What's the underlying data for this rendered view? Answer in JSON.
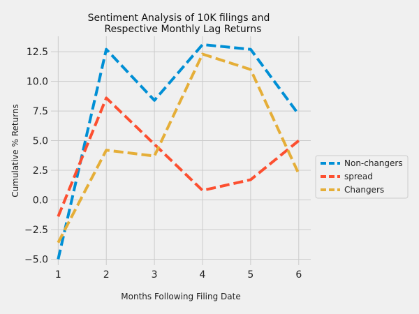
{
  "chart_data": {
    "type": "line",
    "title_lines": [
      "Sentiment Analysis of 10K filings and",
      "Respective Monthly Lag Returns"
    ],
    "xlabel": "Months Following Filing Date",
    "ylabel": "Cumulative % Returns",
    "x": [
      1,
      2,
      3,
      4,
      5,
      6
    ],
    "xticks": [
      "1",
      "2",
      "3",
      "4",
      "5",
      "6"
    ],
    "xlim": [
      0.85,
      6.25
    ],
    "ylim": [
      -5.5,
      13.8
    ],
    "yticks": [
      -5.0,
      -2.5,
      0.0,
      2.5,
      5.0,
      7.5,
      10.0,
      12.5
    ],
    "ytick_labels": [
      "−5.0",
      "−2.5",
      "0.0",
      "2.5",
      "5.0",
      "7.5",
      "10.0",
      "12.5"
    ],
    "grid": true,
    "legend_position": "right",
    "series": [
      {
        "name": "Non-changers",
        "color": "#008fd5",
        "values": [
          -5.0,
          12.7,
          8.4,
          13.1,
          12.7,
          7.2
        ]
      },
      {
        "name": "spread",
        "color": "#fc4f30",
        "values": [
          -1.4,
          8.6,
          4.7,
          0.8,
          1.7,
          5.0
        ]
      },
      {
        "name": "Changers",
        "color": "#e5ae38",
        "values": [
          -3.6,
          4.2,
          3.7,
          12.3,
          11.0,
          2.2
        ]
      }
    ]
  }
}
